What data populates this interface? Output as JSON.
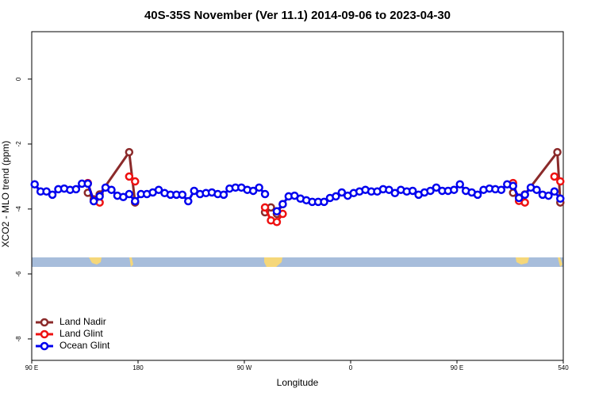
{
  "chart_data": {
    "type": "line",
    "title": "40S-35S November (Ver 11.1)   2014-09-06 to 2023-04-30",
    "x_label": "Longitude",
    "y_label": "XCO2 - MLO trend (ppm)",
    "xlim": [
      90,
      540
    ],
    "ylim": [
      -8.66,
      1.46
    ],
    "xticks": [
      {
        "value": 90,
        "label": "90 E"
      },
      180,
      {
        "value": 270,
        "label": "90 W"
      },
      {
        "value": 360,
        "label": "0"
      },
      {
        "value": 450,
        "label": "90 E"
      },
      540
    ],
    "yticks": [
      -8,
      -6,
      -4,
      -2,
      0
    ],
    "legend": "bottom-left",
    "series": [
      {
        "name": "Land Nadir",
        "color": "#8b2a2a",
        "x": [
          137.5,
          142.5,
          147.5,
          172.5,
          177.5,
          230,
          287.5,
          292.5,
          297.5,
          302.5,
          400,
          497.5,
          502.5,
          507.5,
          535,
          537.5
        ],
        "values": [
          -3.5,
          -3.7,
          -3.55,
          -2.25,
          -3.8,
          null,
          -4.1,
          -3.95,
          -4.15,
          -3.85,
          null,
          -3.5,
          -3.65,
          -3.55,
          -2.25,
          -3.8
        ]
      },
      {
        "name": "Land Glint",
        "color": "#ee1111",
        "x": [
          137.5,
          142.5,
          147.5,
          160,
          172.5,
          177.5,
          230,
          287.5,
          292.5,
          297.5,
          302.5,
          400,
          497.5,
          502.5,
          507.5,
          520,
          532.5,
          537.5
        ],
        "values": [
          -3.2,
          -3.75,
          -3.8,
          null,
          -3.0,
          -3.15,
          null,
          -3.95,
          -4.35,
          -4.4,
          -4.15,
          null,
          -3.2,
          -3.75,
          -3.8,
          null,
          -3.0,
          -3.15
        ]
      },
      {
        "name": "Ocean Glint",
        "color": "#0000ee",
        "x": [
          92.5,
          97.5,
          102.5,
          107.5,
          112.5,
          117.5,
          122.5,
          127.5,
          132.5,
          137.5,
          142.5,
          147.5,
          152.5,
          157.5,
          162.5,
          167.5,
          172.5,
          177.5,
          182.5,
          187.5,
          192.5,
          197.5,
          202.5,
          207.5,
          212.5,
          217.5,
          222.5,
          227.5,
          232.5,
          237.5,
          242.5,
          247.5,
          252.5,
          257.5,
          262.5,
          267.5,
          272.5,
          277.5,
          282.5,
          287.5,
          292.5,
          297.5,
          302.5,
          307.5,
          312.5,
          317.5,
          322.5,
          327.5,
          332.5,
          337.5,
          342.5,
          347.5,
          352.5,
          357.5,
          362.5,
          367.5,
          372.5,
          377.5,
          382.5,
          387.5,
          392.5,
          397.5,
          402.5,
          407.5,
          412.5,
          417.5,
          422.5,
          427.5,
          432.5,
          437.5,
          442.5,
          447.5,
          452.5,
          457.5,
          462.5,
          467.5,
          472.5,
          477.5,
          482.5,
          487.5,
          492.5,
          497.5,
          502.5,
          507.5,
          512.5,
          517.5,
          522.5,
          527.5,
          532.5,
          537.5
        ],
        "values": [
          -3.24,
          -3.46,
          -3.46,
          -3.56,
          -3.39,
          -3.37,
          -3.41,
          -3.39,
          -3.22,
          -3.22,
          -3.76,
          -3.61,
          -3.34,
          -3.41,
          -3.59,
          -3.63,
          -3.54,
          -3.76,
          -3.54,
          -3.54,
          -3.49,
          -3.41,
          -3.51,
          -3.56,
          -3.56,
          -3.56,
          -3.76,
          -3.44,
          -3.54,
          -3.51,
          -3.49,
          -3.54,
          -3.56,
          -3.37,
          -3.34,
          -3.34,
          -3.41,
          -3.44,
          -3.34,
          -3.54,
          null,
          -4.07,
          -3.85,
          -3.61,
          -3.59,
          -3.68,
          -3.73,
          -3.78,
          -3.78,
          -3.78,
          -3.66,
          -3.61,
          -3.49,
          -3.59,
          -3.51,
          -3.46,
          -3.41,
          -3.46,
          -3.46,
          -3.39,
          -3.41,
          -3.51,
          -3.41,
          -3.46,
          -3.44,
          -3.56,
          -3.49,
          -3.44,
          -3.34,
          -3.44,
          -3.44,
          -3.41,
          -3.24,
          -3.44,
          -3.49,
          -3.56,
          -3.41,
          -3.37,
          -3.39,
          -3.41,
          -3.24,
          -3.29,
          -3.66,
          -3.56,
          -3.34,
          -3.41,
          -3.56,
          -3.59,
          -3.46,
          -3.68
        ]
      }
    ]
  }
}
